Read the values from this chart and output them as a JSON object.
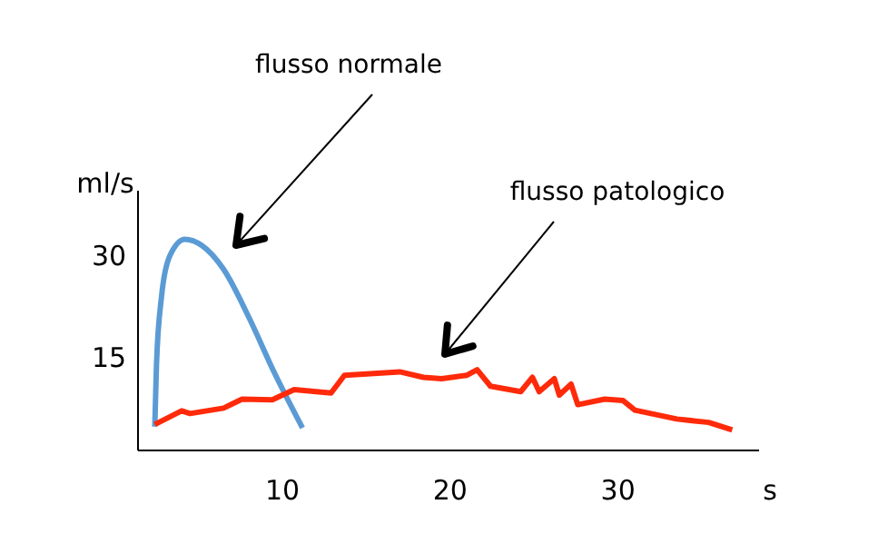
{
  "chart_data": {
    "type": "line",
    "ylabel": "ml/s",
    "xlabel": "s",
    "xlim": [
      1.4,
      38.4
    ],
    "ylim": [
      1.5,
      39.5
    ],
    "xticks": [
      10,
      20,
      30
    ],
    "yticks": [
      15,
      30
    ],
    "grid": false,
    "marker": "none",
    "line_style": "solid",
    "series": [
      {
        "name": "flusso normale",
        "color": "#5b9bd5",
        "x": [
          2.4,
          2.5,
          2.8,
          3.3,
          4.2,
          5.2,
          6.5,
          8,
          9.5,
          11.2
        ],
        "values": [
          5,
          14,
          24,
          30,
          32.4,
          31.5,
          28,
          21,
          13,
          4.8
        ]
      },
      {
        "name": "flusso patologico",
        "color": "#ff2a0a",
        "x": [
          2.4,
          4,
          4.5,
          6.5,
          7.6,
          9.4,
          10.7,
          12.9,
          13.7,
          17,
          18.4,
          19.5,
          21,
          21.6,
          22.4,
          24.2,
          24.9,
          25.3,
          26.2,
          26.5,
          27.2,
          27.6,
          29.2,
          30.3,
          31,
          33.5,
          35.4,
          36.8
        ],
        "values": [
          5.3,
          7.3,
          6.9,
          7.7,
          9,
          8.9,
          10.4,
          9.9,
          12.5,
          13,
          12.2,
          12,
          12.5,
          13.3,
          10.9,
          10.1,
          12.2,
          10.1,
          12,
          9.6,
          11.2,
          8.2,
          9,
          8.8,
          7.4,
          6.1,
          5.6,
          4.5
        ]
      }
    ]
  }
}
